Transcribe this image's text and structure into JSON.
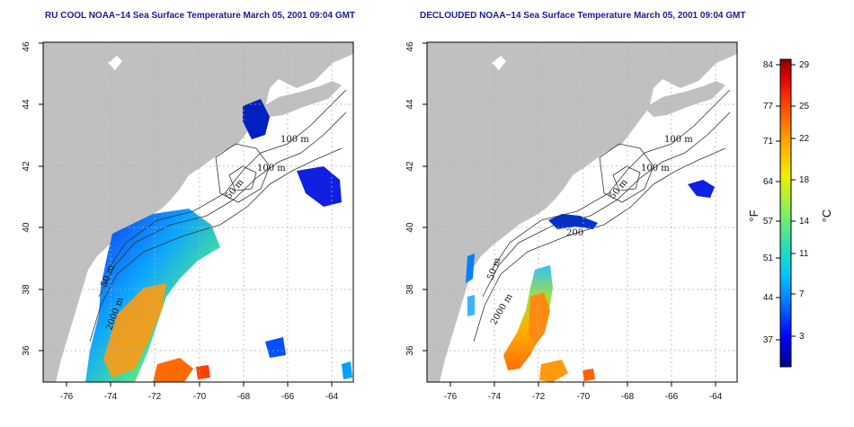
{
  "panels": [
    {
      "title": "RU COOL NOAA−14 Sea Surface Temperature March 05, 2001 09:04 GMT",
      "x_ticks": [
        "-76",
        "-74",
        "-72",
        "-70",
        "-68",
        "-66",
        "-64"
      ],
      "y_ticks": [
        "36",
        "38",
        "40",
        "42",
        "44",
        "46"
      ],
      "contour_labels": [
        "100 m",
        "100 m",
        "50 m",
        "50 m",
        "2000 m"
      ]
    },
    {
      "title": "DECLOUDED NOAA−14 Sea Surface Temperature March 05, 2001 09:04 GMT",
      "x_ticks": [
        "-76",
        "-74",
        "-72",
        "-70",
        "-68",
        "-66",
        "-64"
      ],
      "y_ticks": [
        "36",
        "38",
        "40",
        "42",
        "44",
        "46"
      ],
      "contour_labels": [
        "100 m",
        "100 m",
        "50 m",
        "200",
        "50 m",
        "2000 m"
      ]
    }
  ],
  "colorbar": {
    "fahrenheit_ticks": [
      "84",
      "77",
      "71",
      "64",
      "57",
      "51",
      "44",
      "37"
    ],
    "celsius_ticks": [
      "29",
      "25",
      "22",
      "18",
      "14",
      "11",
      "7",
      "3"
    ],
    "left_unit": "°F",
    "right_unit": "°C",
    "colors": [
      "#00008b",
      "#0000ff",
      "#0070ff",
      "#00c8ff",
      "#30e0b0",
      "#80f060",
      "#f0f000",
      "#ffa000",
      "#ff4000",
      "#e00000",
      "#8b0000"
    ]
  },
  "colors": {
    "land": "#c0c0c0",
    "ocean": "#ffffff",
    "grid": "#b0b0b0",
    "title": "#1a1a9a"
  }
}
